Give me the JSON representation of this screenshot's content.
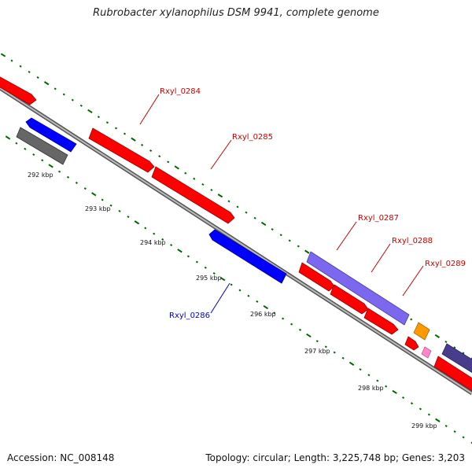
{
  "title": "Rubrobacter xylanophilus DSM 9941, complete genome",
  "footer": {
    "accession": "Accession: NC_008148",
    "summary": "Topology: circular; Length: 3,225,748 bp; Genes: 3,203"
  },
  "scale_labels": [
    "292 kbp",
    "293 kbp",
    "294 kbp",
    "295 kbp",
    "296 kbp",
    "297 kbp",
    "298 kbp",
    "299 kbp"
  ],
  "gene_labels": [
    {
      "text": "Rxyl_0284",
      "color": "#cc0000"
    },
    {
      "text": "Rxyl_0285",
      "color": "#cc0000"
    },
    {
      "text": "Rxyl_0286",
      "color": "#0000cc"
    },
    {
      "text": "Rxyl_0287",
      "color": "#cc0000"
    },
    {
      "text": "Rxyl_0288",
      "color": "#cc0000"
    },
    {
      "text": "Rxyl_0289",
      "color": "#cc0000"
    }
  ],
  "colors": {
    "forward_gene": "#ff0000",
    "reverse_gene": "#0000ff",
    "operon": "#7b68ee",
    "pseudo": "#666666",
    "orange": "#ff9900",
    "pink": "#ff88cc",
    "dark_purple": "#483d8b",
    "tick_green": "#006600",
    "backbone": "#888888"
  }
}
